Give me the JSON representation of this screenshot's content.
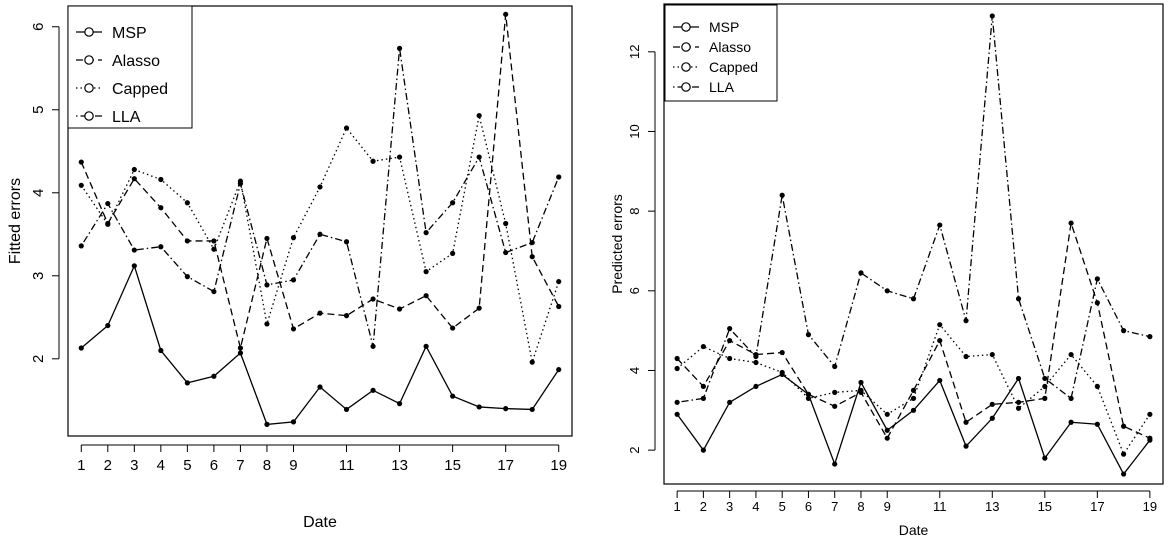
{
  "chart_data": [
    {
      "type": "line",
      "title": "",
      "xlabel": "Date",
      "ylabel": "Fitted errors",
      "x": [
        1,
        2,
        3,
        4,
        5,
        6,
        7,
        8,
        9,
        10,
        11,
        12,
        13,
        14,
        15,
        16,
        17,
        18,
        19
      ],
      "xticks": [
        1,
        2,
        3,
        4,
        5,
        6,
        7,
        8,
        9,
        11,
        13,
        15,
        17,
        19
      ],
      "yticks": [
        2,
        3,
        4,
        5,
        6
      ],
      "xlim": [
        0.5,
        19.5
      ],
      "ylim": [
        1.07,
        6.25
      ],
      "legend_position": "top-left",
      "grid": false,
      "series": [
        {
          "name": "MSP",
          "dash": "solid",
          "values": [
            2.13,
            2.4,
            3.12,
            2.1,
            1.71,
            1.79,
            2.07,
            1.21,
            1.24,
            1.66,
            1.39,
            1.62,
            1.46,
            2.15,
            1.55,
            1.42,
            1.4,
            1.39,
            1.87
          ]
        },
        {
          "name": "Alasso",
          "dash": "dashed",
          "values": [
            4.37,
            3.63,
            4.17,
            3.82,
            3.42,
            3.42,
            2.13,
            3.45,
            2.36,
            2.55,
            2.52,
            2.72,
            2.6,
            2.76,
            2.37,
            2.61,
            6.15,
            3.23,
            2.63
          ]
        },
        {
          "name": "Capped",
          "dash": "dotted",
          "values": [
            4.09,
            3.62,
            4.28,
            4.16,
            3.88,
            3.32,
            4.14,
            2.42,
            3.46,
            4.07,
            4.78,
            4.38,
            4.43,
            3.05,
            3.27,
            4.93,
            3.63,
            1.96,
            2.93
          ]
        },
        {
          "name": "LLA",
          "dash": "dotdash",
          "values": [
            3.36,
            3.87,
            3.31,
            3.35,
            2.99,
            2.81,
            4.11,
            2.89,
            2.95,
            3.5,
            3.41,
            2.15,
            5.74,
            3.52,
            3.88,
            4.43,
            3.28,
            3.4,
            4.19
          ]
        }
      ]
    },
    {
      "type": "line",
      "title": "",
      "xlabel": "Date",
      "ylabel": "Predicted errors",
      "x": [
        1,
        2,
        3,
        4,
        5,
        6,
        7,
        8,
        9,
        10,
        11,
        12,
        13,
        14,
        15,
        16,
        17,
        18,
        19
      ],
      "xticks": [
        1,
        2,
        3,
        4,
        5,
        6,
        7,
        8,
        9,
        11,
        13,
        15,
        17,
        19
      ],
      "yticks": [
        2,
        4,
        6,
        8,
        10,
        12
      ],
      "xlim": [
        0.5,
        19.5
      ],
      "ylim": [
        1.15,
        13.2
      ],
      "legend_position": "top-left",
      "grid": false,
      "series": [
        {
          "name": "MSP",
          "dash": "solid",
          "values": [
            2.9,
            2.0,
            3.2,
            3.6,
            3.9,
            3.4,
            1.65,
            3.7,
            2.5,
            3.0,
            3.75,
            2.1,
            2.8,
            3.8,
            1.8,
            2.7,
            2.65,
            1.4,
            2.25
          ]
        },
        {
          "name": "Alasso",
          "dash": "dashed",
          "values": [
            4.3,
            3.6,
            4.75,
            4.4,
            4.45,
            3.4,
            3.1,
            3.45,
            2.3,
            3.5,
            4.75,
            2.7,
            3.15,
            3.2,
            3.3,
            7.7,
            5.7,
            2.6,
            2.3
          ]
        },
        {
          "name": "Capped",
          "dash": "dotted",
          "values": [
            4.05,
            4.6,
            4.3,
            4.2,
            3.95,
            3.3,
            3.45,
            3.5,
            2.9,
            3.3,
            5.15,
            4.35,
            4.4,
            3.05,
            3.6,
            4.4,
            3.6,
            1.9,
            2.9
          ]
        },
        {
          "name": "LLA",
          "dash": "dotdash",
          "values": [
            3.2,
            3.3,
            5.05,
            4.35,
            8.4,
            4.9,
            4.1,
            6.45,
            6.0,
            5.8,
            7.65,
            5.25,
            12.9,
            5.8,
            3.8,
            3.3,
            6.3,
            5.0,
            4.85
          ]
        }
      ]
    }
  ]
}
